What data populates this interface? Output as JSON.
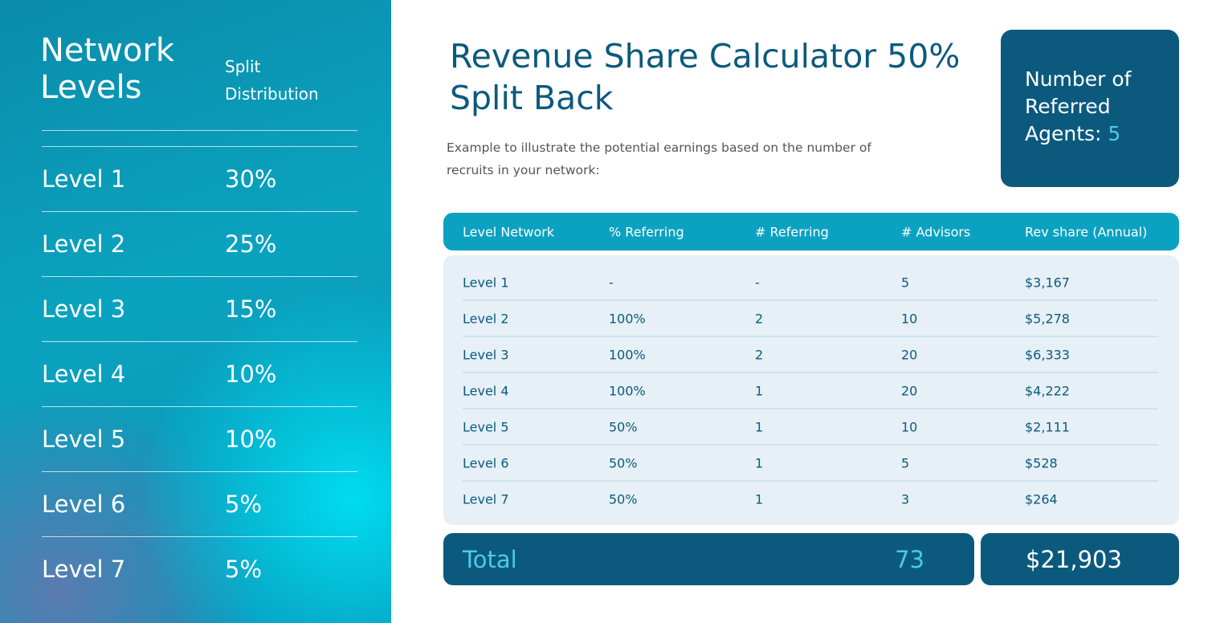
{
  "sidebar": {
    "heading": "Network Levels",
    "subheading": "Split Distribution",
    "rows": [
      [
        "Level 1",
        "30%"
      ],
      [
        "Level 2",
        "25%"
      ],
      [
        "Level 3",
        "15%"
      ],
      [
        "Level 4",
        "10%"
      ],
      [
        "Level 5",
        "10%"
      ],
      [
        "Level 6",
        "5%"
      ],
      [
        "Level 7",
        "5%"
      ]
    ]
  },
  "header": {
    "title": "Revenue Share Calculator 50% Split Back",
    "description": "Example to illustrate the potential earnings based on the number of recruits in your network:"
  },
  "agents": {
    "label": "Number of Referred Agents:",
    "value": "5"
  },
  "table": {
    "columns": [
      "Level Network",
      "% Referring",
      "# Referring",
      "# Advisors",
      "Rev share (Annual)"
    ],
    "rows": [
      [
        "Level 1",
        "-",
        "-",
        "5",
        "$3,167"
      ],
      [
        "Level 2",
        "100%",
        "2",
        "10",
        "$5,278"
      ],
      [
        "Level 3",
        "100%",
        "2",
        "20",
        "$6,333"
      ],
      [
        "Level 4",
        "100%",
        "1",
        "20",
        "$4,222"
      ],
      [
        "Level 5",
        "50%",
        "1",
        "10",
        "$2,111"
      ],
      [
        "Level 6",
        "50%",
        "1",
        "5",
        "$528"
      ],
      [
        "Level 7",
        "50%",
        "1",
        "3",
        "$264"
      ]
    ]
  },
  "total": {
    "label": "Total",
    "advisors": "73",
    "revenue": "$21,903"
  }
}
